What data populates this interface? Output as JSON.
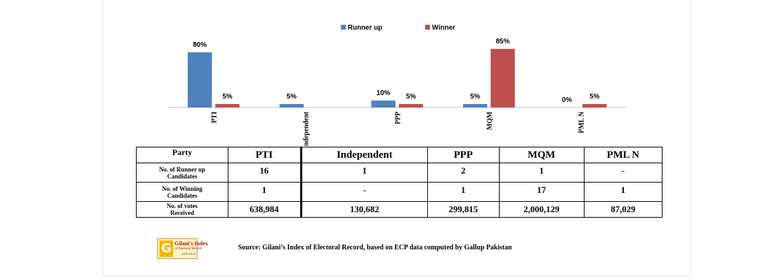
{
  "chart_data": {
    "type": "bar",
    "categories": [
      "PTI",
      "Independent",
      "PPP",
      "MQM",
      "PML N"
    ],
    "series": [
      {
        "name": "Runner up",
        "values": [
          80,
          5,
          10,
          5,
          0
        ],
        "labels": [
          "80%",
          "5%",
          "10%",
          "5%",
          "0%"
        ],
        "color": "#4f81bd"
      },
      {
        "name": "Winner",
        "values": [
          5,
          null,
          5,
          85,
          5
        ],
        "labels": [
          "5%",
          "",
          "5%",
          "85%",
          "5%"
        ],
        "color": "#c0504d"
      }
    ],
    "ylim": [
      0,
      100
    ],
    "legend": "top-center",
    "grid": false,
    "title": "",
    "xlabel": "",
    "ylabel": ""
  },
  "table": {
    "header_label": "Party",
    "parties": [
      "PTI",
      "Independent",
      "PPP",
      "MQM",
      "PML N"
    ],
    "rows": [
      {
        "label_line1": "No. of Runner up",
        "label_line2": "Candidates",
        "values": [
          "16",
          "1",
          "2",
          "1",
          "-"
        ]
      },
      {
        "label_line1": "No. of Winning",
        "label_line2": "Candidates",
        "values": [
          "1",
          "-",
          "1",
          "17",
          "1"
        ]
      },
      {
        "label_line1": "No. of votes",
        "label_line2": "Received",
        "values": [
          "638,984",
          "130,682",
          "299,815",
          "2,000,129",
          "87,029"
        ]
      }
    ]
  },
  "footer": {
    "logo_title": "Gilani's Index",
    "logo_subtitle": "of Electoral Record",
    "logo_years": "(1970-2013)",
    "logo_mark": "G",
    "source": "Source: Gilani’s Index of Electoral Record, based on ECP data computed by Gallup Pakistan"
  }
}
